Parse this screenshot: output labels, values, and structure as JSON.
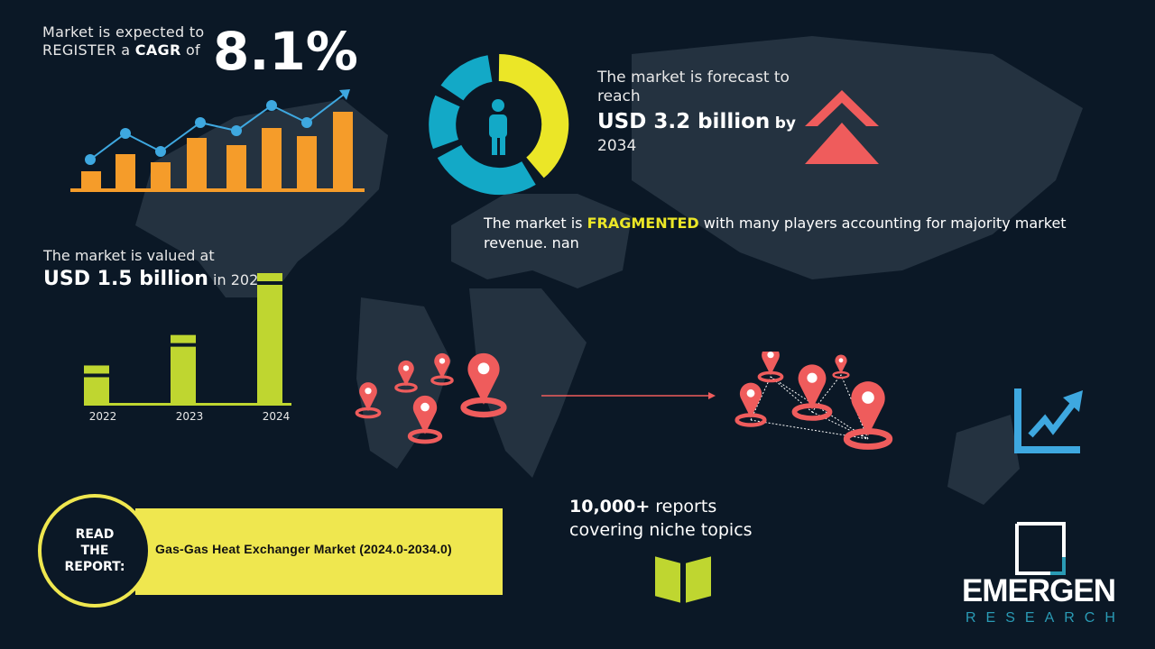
{
  "cagr": {
    "line1": "Market is expected to",
    "line2_prefix": "REGISTER a ",
    "line2_bold": "CAGR",
    "line2_suffix": " of",
    "value": "8.1%"
  },
  "forecast": {
    "line1": "The market is forecast to reach",
    "amount": "USD 3.2 billion",
    "by": "by",
    "year": "2034"
  },
  "fragmented": {
    "prefix": "The market is ",
    "highlight": "FRAGMENTED",
    "suffix": " with many players accounting for majority market revenue. nan"
  },
  "valued": {
    "line1": "The market is valued at",
    "amount": "USD 1.5 billion",
    "suffix": "in 2024"
  },
  "chart_data": {
    "type": "bar",
    "categories": [
      "2022",
      "2023",
      "2024"
    ],
    "values": [
      0.44,
      0.79,
      1.5
    ],
    "color": "#bfd630"
  },
  "read": {
    "label_lines": [
      "READ",
      "THE",
      "REPORT:"
    ],
    "title": "Gas-Gas Heat Exchanger Market (2024.0-2034.0)"
  },
  "reports": {
    "bold": "10,000+",
    "line1_suffix": " reports",
    "line2": "covering niche topics"
  },
  "logo": {
    "main": "EMERGEN",
    "sub": "RESEARCH"
  },
  "colors": {
    "background": "#0b1826",
    "orange": "#f59c2a",
    "blue": "#3ea8e0",
    "yellow": "#ebe627",
    "teal": "#13a9c7",
    "red": "#ef5c5c",
    "green": "#bfd630",
    "map": "#243240"
  },
  "icons": [
    "growth-chart-icon",
    "donut-person-icon",
    "double-chevron-up-icon",
    "location-pin-icon",
    "trend-chart-icon",
    "open-book-icon"
  ]
}
